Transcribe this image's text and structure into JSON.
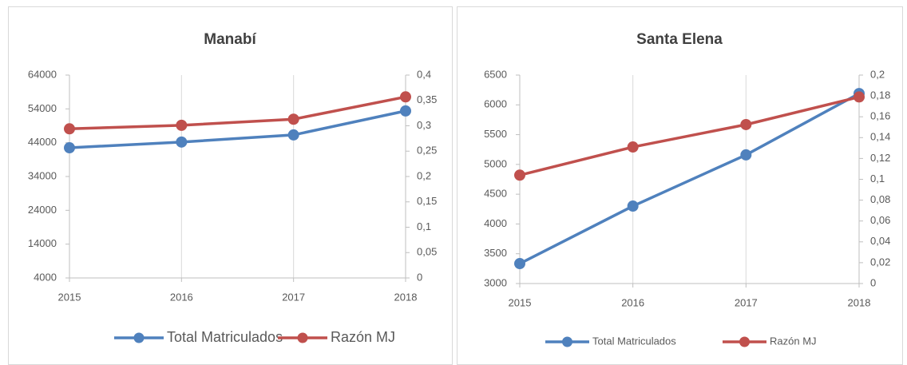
{
  "chart_data": [
    {
      "type": "line",
      "title": "Manabí",
      "categories": [
        "2015",
        "2016",
        "2017",
        "2018"
      ],
      "series": [
        {
          "name": "Total Matriculados",
          "color": "#4f81bd",
          "values": [
            42500,
            44200,
            46300,
            53400
          ]
        },
        {
          "name": "Razón MJ",
          "color": "#c0504d",
          "axis": "y2",
          "values": [
            0.294,
            0.301,
            0.313,
            0.357
          ]
        }
      ],
      "ylim": [
        4000,
        64000
      ],
      "yticks": [
        4000,
        14000,
        24000,
        34000,
        44000,
        54000,
        64000
      ],
      "y2lim": [
        0,
        0.4
      ],
      "y2ticks": [
        0,
        {
          "value": 0.05,
          "label": "0,05"
        },
        {
          "value": 0.1,
          "label": "0,1"
        },
        {
          "value": 0.15,
          "label": "0,15"
        },
        {
          "value": 0.2,
          "label": "0,2"
        },
        {
          "value": 0.25,
          "label": "0,25"
        },
        {
          "value": 0.3,
          "label": "0,3"
        },
        {
          "value": 0.35,
          "label": "0,35"
        },
        {
          "value": 0.4,
          "label": "0,4"
        }
      ],
      "grid": true,
      "legend": "bottom"
    },
    {
      "type": "line",
      "title": "Santa Elena",
      "categories": [
        "2015",
        "2016",
        "2017",
        "2018"
      ],
      "series": [
        {
          "name": "Total Matriculados",
          "color": "#4f81bd",
          "values": [
            3335,
            4300,
            5160,
            6190
          ]
        },
        {
          "name": "Razón MJ",
          "color": "#c0504d",
          "axis": "y2",
          "values": [
            0.104,
            0.131,
            0.1525,
            0.179
          ]
        }
      ],
      "ylim": [
        3000,
        6500
      ],
      "yticks": [
        3000,
        3500,
        4000,
        4500,
        5000,
        5500,
        6000,
        6500
      ],
      "y2lim": [
        0,
        0.2
      ],
      "y2ticks": [
        0,
        {
          "value": 0.02,
          "label": "0,02"
        },
        {
          "value": 0.04,
          "label": "0,04"
        },
        {
          "value": 0.06,
          "label": "0,06"
        },
        {
          "value": 0.08,
          "label": "0,08"
        },
        {
          "value": 0.1,
          "label": "0,1"
        },
        {
          "value": 0.12,
          "label": "0,12"
        },
        {
          "value": 0.14,
          "label": "0,14"
        },
        {
          "value": 0.16,
          "label": "0,16"
        },
        {
          "value": 0.18,
          "label": "0,18"
        },
        {
          "value": 0.2,
          "label": "0,2"
        }
      ],
      "grid": true,
      "legend": "bottom"
    }
  ]
}
